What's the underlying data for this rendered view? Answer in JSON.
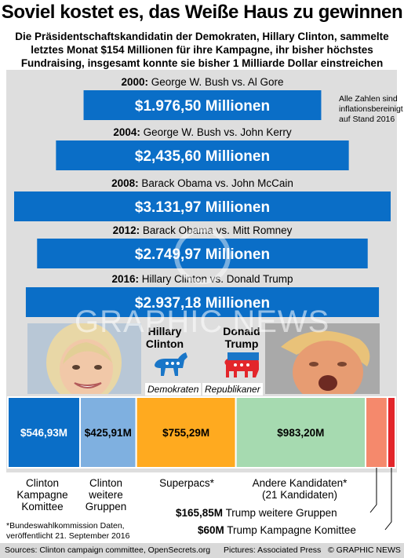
{
  "title": "Soviel kostet es, das Weiße Haus zu gewinnen",
  "subtitle_lines": [
    "Die Präsidentschaftskandidatin der Demokraten, Hillary Clinton, sammelte",
    "letztes Monat $154 Millionen für ihre Kampagne, ihr bisher höchstes",
    "Fundraising, insgesamt konnte sie bisher 1 Milliarde Dollar einstreichen"
  ],
  "note": "Alle Zahlen sind inflationsbereinigt auf Stand 2016",
  "colors": {
    "bar": "#0a6ec7",
    "panel": "#dedede",
    "dem": "#1976c8",
    "rep": "#e3262b"
  },
  "chart_data": [
    {
      "type": "bar",
      "orientation": "horizontal",
      "unit": "Millionen $",
      "categories": [
        {
          "year": "2000:",
          "race": "George W. Bush vs. Al Gore"
        },
        {
          "year": "2004:",
          "race": "George W. Bush vs. John Kerry"
        },
        {
          "year": "2008:",
          "race": "Barack Obama vs. John McCain"
        },
        {
          "year": "2012:",
          "race": "Barack Obama vs. Mitt Romney"
        },
        {
          "year": "2016:",
          "race": "Hillary Clinton vs. Donald Trump"
        }
      ],
      "values": [
        1976.5,
        2435.6,
        3131.97,
        2749.97,
        2937.18
      ],
      "labels": [
        "$1.976,50 Millionen",
        "$2,435,60 Millionen",
        "$3.131,97 Millionen",
        "$2.749,97 Millionen",
        "$2.937,18 Millionen"
      ]
    },
    {
      "type": "bar",
      "orientation": "stacked-horizontal",
      "unit": "Millionen $",
      "segments": [
        {
          "value": 546.93,
          "label": "$546,93M",
          "name": "Clinton Kampagne Komittee",
          "color": "#0a6ec7"
        },
        {
          "value": 425.91,
          "label": "$425,91M",
          "name": "Clinton weitere Gruppen",
          "color": "#7fb0e0"
        },
        {
          "value": 755.29,
          "label": "$755,29M",
          "name": "Superpacs*",
          "color": "#ffaa1f"
        },
        {
          "value": 983.2,
          "label": "$983,20M",
          "name": "Andere Kandidaten* (21 Kandidaten)",
          "color": "#a6dab0"
        },
        {
          "value": 165.85,
          "label": "$165,85M",
          "name": "Trump weitere Gruppen",
          "color": "#f5896c"
        },
        {
          "value": 60,
          "label": "$60M",
          "name": "Trump Kampagne Komittee",
          "color": "#e3262b"
        }
      ]
    }
  ],
  "candidates": {
    "clinton": {
      "name": "Hillary Clinton",
      "party": "Demokraten"
    },
    "trump": {
      "name": "Donald Trump",
      "party": "Republikaner"
    }
  },
  "segment_captions": {
    "clinton_committee": [
      "Clinton",
      "Kampagne",
      "Komittee"
    ],
    "clinton_other": [
      "Clinton",
      "weitere",
      "Gruppen"
    ],
    "superpacs": "Superpacs*",
    "others": [
      "Andere Kandidaten*",
      "(21 Kandidaten)"
    ]
  },
  "annotations": {
    "trump_other_value": "$165,85M",
    "trump_other_text": "Trump weitere Gruppen",
    "trump_committee_value": "$60M",
    "trump_committee_text": "Trump Kampagne Komittee"
  },
  "footnote_lines": [
    "*Bundeswahlkommission Daten,",
    "veröffentlicht 21. September 2016"
  ],
  "footer": {
    "sources": "Sources: Clinton campaign committee, OpenSecrets.org",
    "pictures": "Pictures: Associated Press",
    "copyright": "© GRAPHIC NEWS"
  },
  "watermark": "GRAPHIC NEWS"
}
